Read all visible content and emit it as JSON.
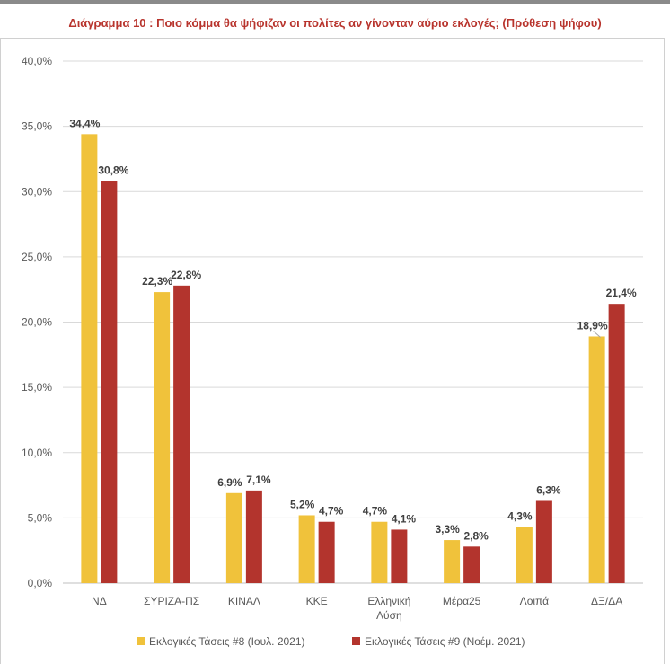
{
  "chart_data": {
    "type": "bar",
    "title": "Διάγραμμα 10 : Ποιο κόμμα θα ψήφιζαν οι πολίτες αν γίνονταν αύριο εκλογές; (Πρόθεση ψήφου)",
    "categories": [
      [
        "ΝΔ"
      ],
      [
        "ΣΥΡΙΖΑ-ΠΣ"
      ],
      [
        "ΚΙΝΑΛ"
      ],
      [
        "ΚΚΕ"
      ],
      [
        "Ελληνική",
        "Λύση"
      ],
      [
        "Μέρα25"
      ],
      [
        "Λοιπά"
      ],
      [
        "ΔΞ/ΔΑ"
      ]
    ],
    "series": [
      {
        "name": "Εκλογικές Τάσεις #8 (Ιουλ. 2021)",
        "color": "#f0c23b",
        "values": [
          34.4,
          22.3,
          6.9,
          5.2,
          4.7,
          3.3,
          4.3,
          18.9
        ],
        "labels": [
          "34,4%",
          "22,3%",
          "6,9%",
          "5,2%",
          "4,7%",
          "3,3%",
          "4,3%",
          "18,9%"
        ]
      },
      {
        "name": "Εκλογικές Τάσεις #9 (Νοέμ. 2021)",
        "color": "#b3342d",
        "values": [
          30.8,
          22.8,
          7.1,
          4.7,
          4.1,
          2.8,
          6.3,
          21.4
        ],
        "labels": [
          "30,8%",
          "22,8%",
          "7,1%",
          "4,7%",
          "4,1%",
          "2,8%",
          "6,3%",
          "21,4%"
        ]
      }
    ],
    "ylim": [
      0,
      40
    ],
    "yticks": [
      0,
      5,
      10,
      15,
      20,
      25,
      30,
      35,
      40
    ],
    "ytick_labels": [
      "0,0%",
      "5,0%",
      "10,0%",
      "15,0%",
      "20,0%",
      "25,0%",
      "30,0%",
      "35,0%",
      "40,0%"
    ],
    "xlabel": "",
    "ylabel": "",
    "grid": true,
    "legend_position": "bottom"
  }
}
